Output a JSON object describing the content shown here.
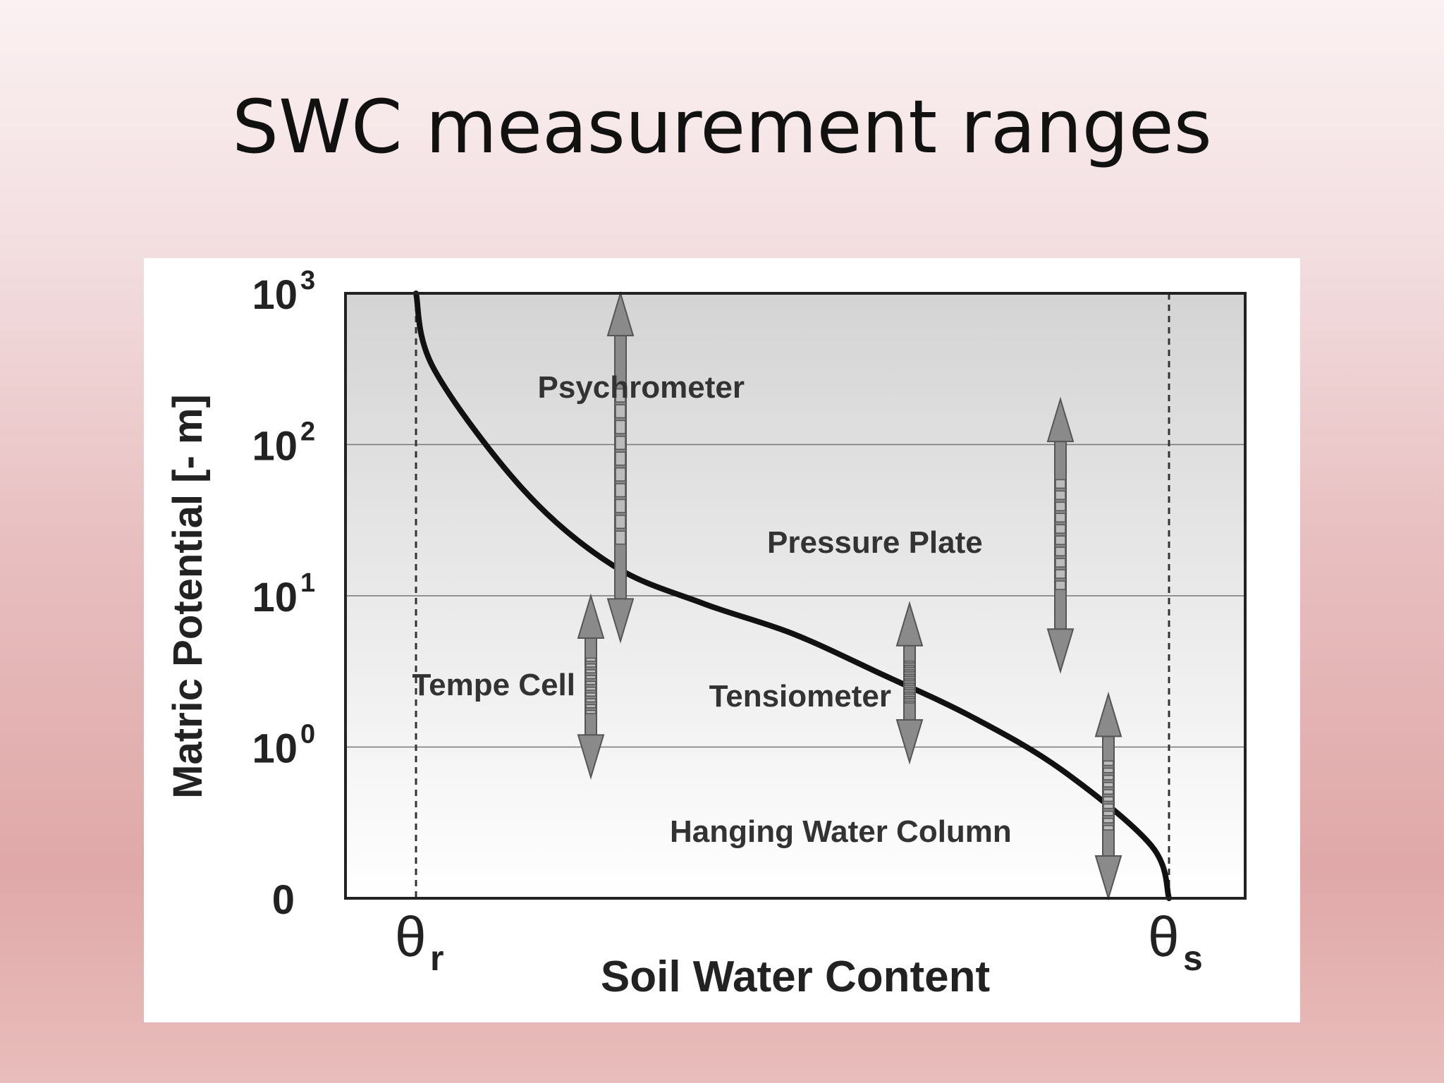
{
  "slide": {
    "title": "SWC measurement ranges"
  },
  "chart_data": {
    "type": "line",
    "xlabel": "Soil Water Content",
    "ylabel": "Matric Potential [- m]",
    "x_ticks": [
      {
        "symbol": "θ",
        "subscript": "r"
      },
      {
        "symbol": "θ",
        "subscript": "s"
      }
    ],
    "y_ticks": [
      {
        "base": "0",
        "exp": ""
      },
      {
        "base": "10",
        "exp": "0"
      },
      {
        "base": "10",
        "exp": "1"
      },
      {
        "base": "10",
        "exp": "2"
      },
      {
        "base": "10",
        "exp": "3"
      }
    ],
    "y_scale": "log (tick labels 0, 10^0, 10^1, 10^2, 10^3)",
    "grid": "horizontal lines at 10^0, 10^1, 10^2",
    "series": [
      {
        "values": [
          [
            0.08,
            4.0
          ],
          [
            0.1,
            3.5
          ],
          [
            0.2,
            2.7
          ],
          [
            0.3,
            2.2
          ],
          [
            0.4,
            1.95
          ],
          [
            0.5,
            1.75
          ],
          [
            0.6,
            1.48
          ],
          [
            0.7,
            1.2
          ],
          [
            0.8,
            0.85
          ],
          [
            0.9,
            0.35
          ],
          [
            0.92,
            0.0
          ]
        ]
      }
    ],
    "vlines": [
      {
        "at": "θr",
        "style": "dashed"
      },
      {
        "at": "θs",
        "style": "dashed"
      }
    ],
    "ranges": [
      {
        "label": "Psychrometer",
        "y_from": 1.7,
        "y_to": 4.0
      },
      {
        "label": "Pressure Plate",
        "y_from": 1.5,
        "y_to": 3.3
      },
      {
        "label": "Tempe Cell",
        "y_from": 0.8,
        "y_to": 2.0
      },
      {
        "label": "Tensiometer",
        "y_from": 0.9,
        "y_to": 1.95
      },
      {
        "label": "Hanging Water Column",
        "y_from": 0.0,
        "y_to": 1.35
      }
    ]
  },
  "colors": {
    "curve": "#111111",
    "arrow_fill": "#8a8a8a",
    "arrow_stroke": "#555555",
    "plot_bg_top": "#d4d4d4",
    "plot_bg_bottom": "#ffffff"
  }
}
